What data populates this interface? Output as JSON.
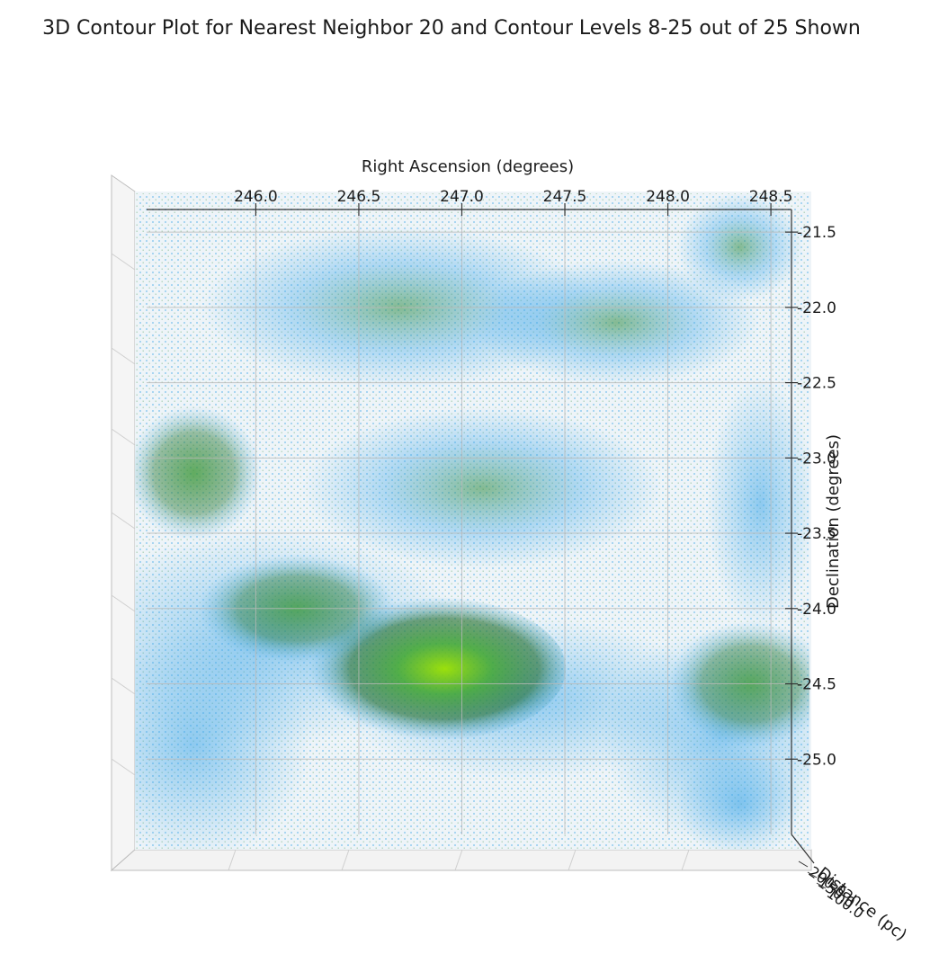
{
  "chart_data": {
    "type": "3d-contour",
    "title": "3D Contour Plot for Nearest Neighbor 20 and Contour Levels 8-25 out of 25 Shown",
    "xlabel": "Right Ascension (degrees)",
    "ylabel": "Declination (degrees)",
    "zlabel": "Distance (pc)",
    "x_ticks": [
      "246.0",
      "246.5",
      "247.0",
      "247.5",
      "248.0",
      "248.5"
    ],
    "y_ticks": [
      "-21.5",
      "-22.0",
      "-22.5",
      "-23.0",
      "-23.5",
      "-24.0",
      "-24.5",
      "-25.0"
    ],
    "z_ticks": [
      "200.0",
      "150.0",
      "100.0"
    ],
    "xlim": [
      245.47,
      248.6
    ],
    "ylim": [
      -21.35,
      -25.5
    ],
    "contour_levels": {
      "shown_from": 8,
      "shown_to": 25,
      "total": 25
    },
    "density_peaks": [
      {
        "ra": 246.85,
        "dec": -24.4,
        "level": 25
      },
      {
        "ra": 248.4,
        "dec": -24.5,
        "level": 19
      },
      {
        "ra": 245.7,
        "dec": -23.1,
        "level": 15
      },
      {
        "ra": 246.2,
        "dec": -24.0,
        "level": 13
      }
    ],
    "colors": {
      "low": "#3fa7e8",
      "mid": "#2e8b3e",
      "high": "#9ae000",
      "background_fill": "#eef4f8"
    },
    "grid": true
  }
}
